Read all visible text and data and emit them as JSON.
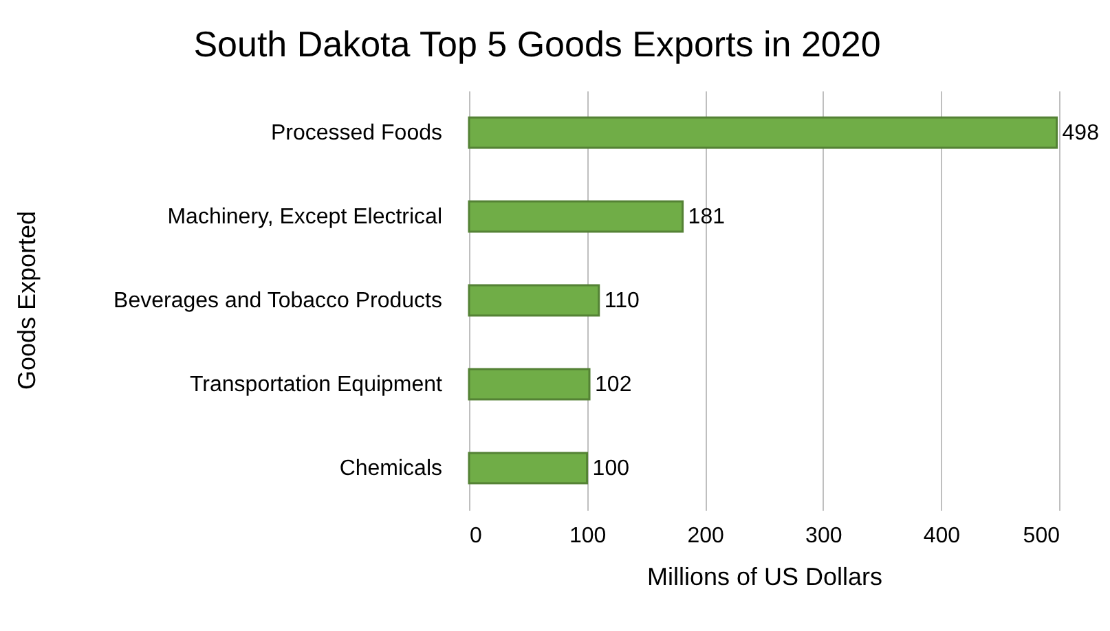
{
  "chart_data": {
    "type": "bar",
    "orientation": "horizontal",
    "title": "South Dakota Top 5 Goods Exports in 2020",
    "xlabel": "Millions of US Dollars",
    "ylabel": "Goods Exported",
    "categories": [
      "Processed Foods",
      "Machinery, Except Electrical",
      "Beverages and Tobacco Products",
      "Transportation Equipment",
      "Chemicals"
    ],
    "values": [
      498,
      181,
      110,
      102,
      100
    ],
    "color": "#70ad47",
    "xlim": [
      0,
      500
    ],
    "xticks": [
      0,
      100,
      200,
      300,
      400,
      500
    ],
    "grid": "x",
    "data_labels": true
  }
}
